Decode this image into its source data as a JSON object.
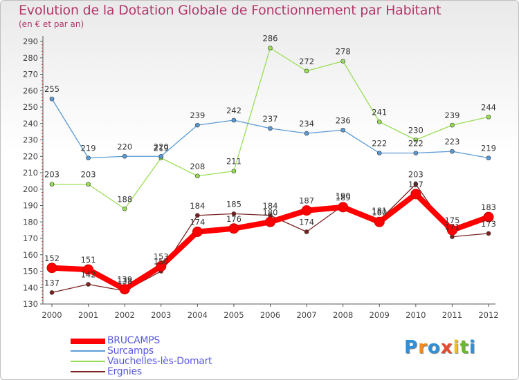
{
  "title": "Evolution de la Dotation Globale de Fonctionnement par Habitant",
  "subtitle": "(en € et par an)",
  "brand": {
    "letters": [
      {
        "ch": "P",
        "color": "#2f8fd8"
      },
      {
        "ch": "r",
        "color": "#f28a1e"
      },
      {
        "ch": "o",
        "color": "#2f8fd8"
      },
      {
        "ch": "x",
        "color": "#e94a2f"
      },
      {
        "ch": "i",
        "color": "#f2c01e"
      },
      {
        "ch": "t",
        "color": "#6ab82f"
      },
      {
        "ch": "i",
        "color": "#2f8fd8"
      }
    ]
  },
  "chart_data": {
    "type": "line",
    "title": "Evolution de la Dotation Globale de Fonctionnement par Habitant",
    "subtitle": "(en € et par an)",
    "xlabel": "",
    "ylabel": "",
    "x": [
      "2000",
      "2001",
      "2002",
      "2003",
      "2004",
      "2005",
      "2006",
      "2007",
      "2008",
      "2009",
      "2010",
      "2011",
      "2012"
    ],
    "ylim": [
      130,
      290
    ],
    "yticks": [
      130,
      140,
      150,
      160,
      170,
      180,
      190,
      200,
      210,
      220,
      230,
      240,
      250,
      260,
      270,
      280,
      290
    ],
    "grid": false,
    "legend_placement": "bottom-left",
    "series": [
      {
        "name": "BRUCAMPS",
        "color": "#ff0000",
        "values": [
          152,
          151,
          139,
          153,
          174,
          176,
          180,
          187,
          189,
          180,
          197,
          175,
          183
        ]
      },
      {
        "name": "Surcamps",
        "color": "#5b9bd5",
        "values": [
          255,
          219,
          220,
          220,
          239,
          242,
          237,
          234,
          236,
          222,
          222,
          223,
          219
        ]
      },
      {
        "name": "Vauchelles-lès-Domart",
        "color": "#99dd55",
        "values": [
          203,
          203,
          188,
          219,
          208,
          211,
          286,
          272,
          278,
          241,
          230,
          239,
          244
        ]
      },
      {
        "name": "Ergnies",
        "color": "#7a2222",
        "values": [
          137,
          142,
          138,
          150,
          184,
          185,
          184,
          174,
          190,
          181,
          203,
          171,
          173
        ]
      }
    ]
  }
}
